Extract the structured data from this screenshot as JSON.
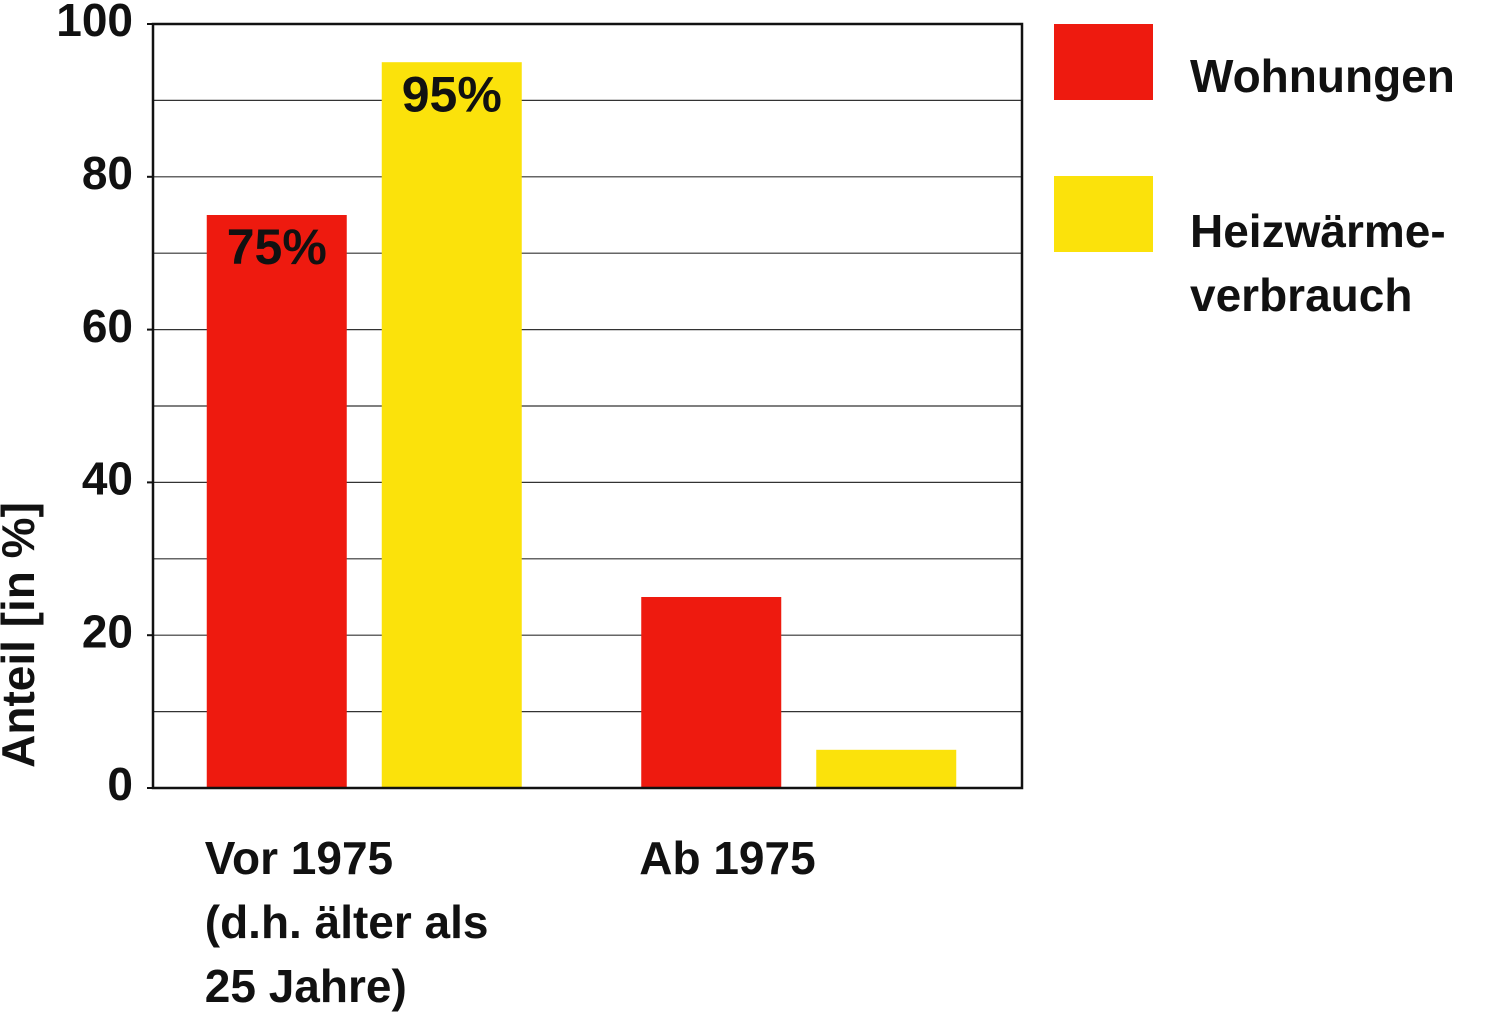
{
  "chart_data": {
    "type": "bar",
    "y_axis_label": "Anteil [in %]",
    "categories": [
      "Vor 1975\n(d.h. älter als\n25 Jahre)",
      "Ab 1975"
    ],
    "series": [
      {
        "name": "Wohnungen",
        "color": "#ee1a0f",
        "values": [
          75,
          25
        ],
        "value_labels": [
          "75%",
          null
        ]
      },
      {
        "name": "Heizwärme-\nverbrauch",
        "color": "#fbe20b",
        "values": [
          95,
          5
        ],
        "value_labels": [
          "95%",
          null
        ]
      }
    ],
    "ylim": [
      0,
      100
    ],
    "yticks": [
      0,
      20,
      40,
      60,
      80,
      100
    ],
    "grid_lines": [
      10,
      20,
      30,
      40,
      50,
      60,
      70,
      80,
      90
    ],
    "legend": "right"
  }
}
